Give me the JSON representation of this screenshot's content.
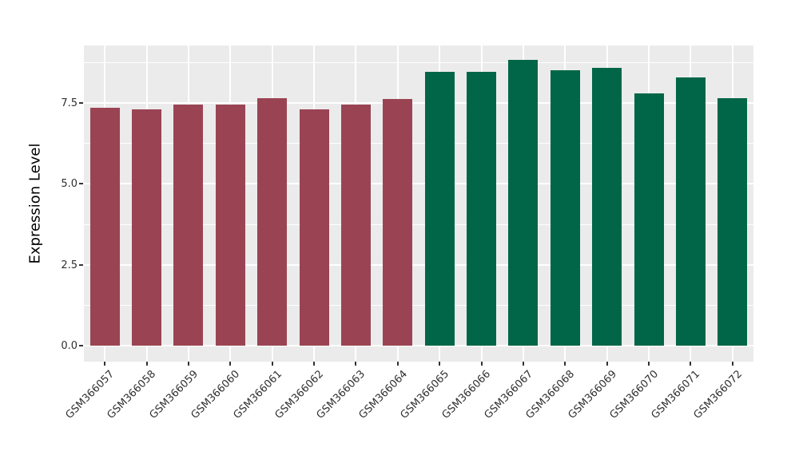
{
  "chart_data": {
    "type": "bar",
    "title": "",
    "xlabel": "",
    "ylabel": "Expression Level",
    "legend_position": "none",
    "grid": true,
    "panel_background": "#EBEBEB",
    "grid_color": "#FFFFFF",
    "axis_text_color": "#303030",
    "ylim": [
      -0.5,
      9.25
    ],
    "yticks": [
      0.0,
      2.5,
      5.0,
      7.5
    ],
    "ytick_labels": [
      "0.0",
      "2.5",
      "5.0",
      "7.5"
    ],
    "yminor": [
      1.25,
      3.75,
      6.25,
      8.75
    ],
    "categories": [
      "GSM366057",
      "GSM366058",
      "GSM366059",
      "GSM366060",
      "GSM366061",
      "GSM366062",
      "GSM366063",
      "GSM366064",
      "GSM366065",
      "GSM366066",
      "GSM366067",
      "GSM366068",
      "GSM366069",
      "GSM366070",
      "GSM366071",
      "GSM366072"
    ],
    "values": [
      7.34,
      7.29,
      7.43,
      7.45,
      7.64,
      7.29,
      7.44,
      7.62,
      8.46,
      8.46,
      8.83,
      8.5,
      8.58,
      7.78,
      8.27,
      7.64
    ],
    "bar_group_keys": [
      "group1",
      "group1",
      "group1",
      "group1",
      "group1",
      "group1",
      "group1",
      "group1",
      "group2",
      "group2",
      "group2",
      "group2",
      "group2",
      "group2",
      "group2",
      "group2"
    ],
    "group_colors": {
      "group1": "#9A4453",
      "group2": "#006647"
    }
  }
}
